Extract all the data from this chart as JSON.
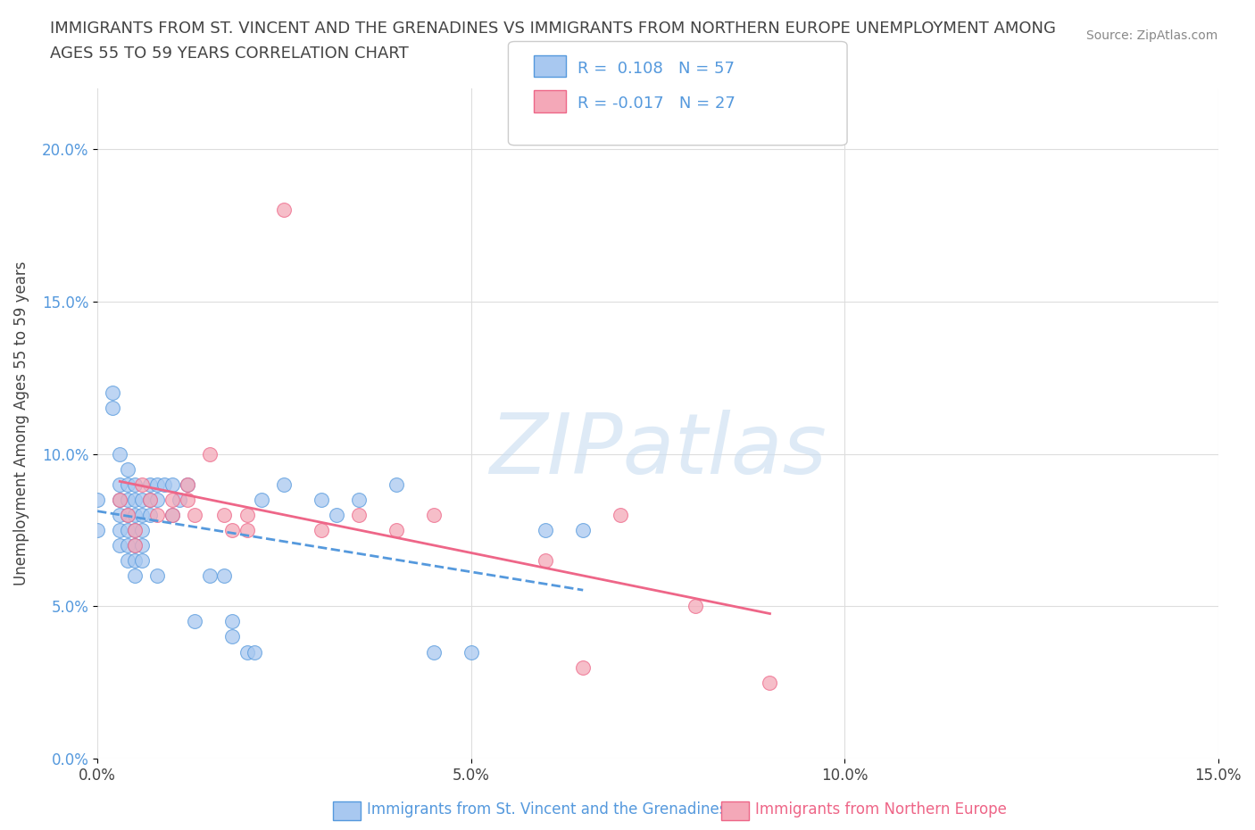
{
  "title_line1": "IMMIGRANTS FROM ST. VINCENT AND THE GRENADINES VS IMMIGRANTS FROM NORTHERN EUROPE UNEMPLOYMENT AMONG",
  "title_line2": "AGES 55 TO 59 YEARS CORRELATION CHART",
  "source": "Source: ZipAtlas.com",
  "xlabel_bottom": "Immigrants from St. Vincent and the Grenadines",
  "xlabel_bottom2": "Immigrants from Northern Europe",
  "ylabel": "Unemployment Among Ages 55 to 59 years",
  "watermark": "ZIPatlas",
  "xlim": [
    0.0,
    0.15
  ],
  "ylim": [
    0.0,
    0.22
  ],
  "xticks": [
    0.0,
    0.05,
    0.1,
    0.15
  ],
  "xticklabels": [
    "0.0%",
    "5.0%",
    "10.0%",
    "15.0%"
  ],
  "yticks": [
    0.0,
    0.05,
    0.1,
    0.15,
    0.2
  ],
  "yticklabels": [
    "0.0%",
    "5.0%",
    "10.0%",
    "15.0%",
    "20.0%"
  ],
  "R_blue": 0.108,
  "N_blue": 57,
  "R_pink": -0.017,
  "N_pink": 27,
  "blue_color": "#a8c8f0",
  "pink_color": "#f4a8b8",
  "trend_blue_color": "#5599dd",
  "trend_pink_color": "#ee6688",
  "blue_scatter": [
    [
      0.0,
      0.085
    ],
    [
      0.0,
      0.075
    ],
    [
      0.002,
      0.12
    ],
    [
      0.002,
      0.115
    ],
    [
      0.003,
      0.1
    ],
    [
      0.003,
      0.09
    ],
    [
      0.003,
      0.085
    ],
    [
      0.003,
      0.08
    ],
    [
      0.003,
      0.075
    ],
    [
      0.003,
      0.07
    ],
    [
      0.004,
      0.095
    ],
    [
      0.004,
      0.09
    ],
    [
      0.004,
      0.085
    ],
    [
      0.004,
      0.08
    ],
    [
      0.004,
      0.075
    ],
    [
      0.004,
      0.07
    ],
    [
      0.004,
      0.065
    ],
    [
      0.005,
      0.09
    ],
    [
      0.005,
      0.085
    ],
    [
      0.005,
      0.08
    ],
    [
      0.005,
      0.075
    ],
    [
      0.005,
      0.07
    ],
    [
      0.005,
      0.065
    ],
    [
      0.005,
      0.06
    ],
    [
      0.006,
      0.085
    ],
    [
      0.006,
      0.08
    ],
    [
      0.006,
      0.075
    ],
    [
      0.006,
      0.07
    ],
    [
      0.006,
      0.065
    ],
    [
      0.007,
      0.09
    ],
    [
      0.007,
      0.085
    ],
    [
      0.007,
      0.08
    ],
    [
      0.008,
      0.09
    ],
    [
      0.008,
      0.085
    ],
    [
      0.008,
      0.06
    ],
    [
      0.009,
      0.09
    ],
    [
      0.01,
      0.09
    ],
    [
      0.01,
      0.08
    ],
    [
      0.011,
      0.085
    ],
    [
      0.012,
      0.09
    ],
    [
      0.013,
      0.045
    ],
    [
      0.015,
      0.06
    ],
    [
      0.017,
      0.06
    ],
    [
      0.018,
      0.045
    ],
    [
      0.018,
      0.04
    ],
    [
      0.02,
      0.035
    ],
    [
      0.021,
      0.035
    ],
    [
      0.022,
      0.085
    ],
    [
      0.025,
      0.09
    ],
    [
      0.03,
      0.085
    ],
    [
      0.032,
      0.08
    ],
    [
      0.035,
      0.085
    ],
    [
      0.04,
      0.09
    ],
    [
      0.045,
      0.035
    ],
    [
      0.05,
      0.035
    ],
    [
      0.06,
      0.075
    ],
    [
      0.065,
      0.075
    ]
  ],
  "pink_scatter": [
    [
      0.003,
      0.085
    ],
    [
      0.004,
      0.08
    ],
    [
      0.005,
      0.075
    ],
    [
      0.005,
      0.07
    ],
    [
      0.006,
      0.09
    ],
    [
      0.007,
      0.085
    ],
    [
      0.008,
      0.08
    ],
    [
      0.01,
      0.085
    ],
    [
      0.01,
      0.08
    ],
    [
      0.012,
      0.085
    ],
    [
      0.012,
      0.09
    ],
    [
      0.013,
      0.08
    ],
    [
      0.015,
      0.1
    ],
    [
      0.017,
      0.08
    ],
    [
      0.018,
      0.075
    ],
    [
      0.02,
      0.08
    ],
    [
      0.02,
      0.075
    ],
    [
      0.025,
      0.18
    ],
    [
      0.03,
      0.075
    ],
    [
      0.035,
      0.08
    ],
    [
      0.04,
      0.075
    ],
    [
      0.045,
      0.08
    ],
    [
      0.06,
      0.065
    ],
    [
      0.065,
      0.03
    ],
    [
      0.07,
      0.08
    ],
    [
      0.08,
      0.05
    ],
    [
      0.09,
      0.025
    ]
  ],
  "grid_color": "#dddddd",
  "background_color": "#ffffff"
}
